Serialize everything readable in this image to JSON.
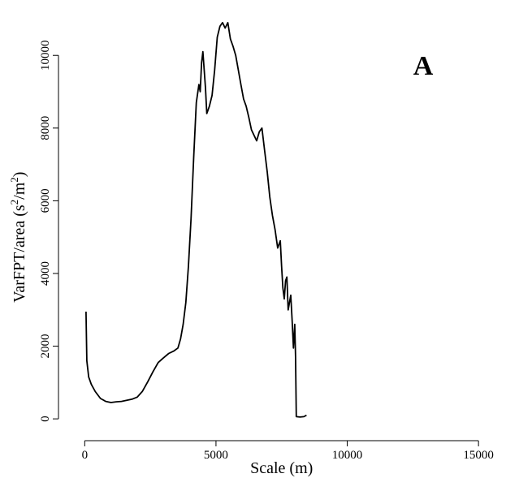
{
  "chart_data": {
    "type": "line",
    "title": "",
    "panel_label": "A",
    "xlabel": "Scale (m)",
    "ylabel": "VarFPT/area (s²/m²)",
    "ylabel_parts": {
      "pre": "VarFPT/area (s",
      "sup1": "2",
      "mid": "/m",
      "sup2": "2",
      "post": ")"
    },
    "xlim": [
      -1000,
      15800
    ],
    "ylim": [
      -600,
      11300
    ],
    "xticks": [
      0,
      5000,
      10000,
      15000
    ],
    "yticks": [
      0,
      2000,
      4000,
      6000,
      8000,
      10000
    ],
    "xtick_labels": [
      "0",
      "5000",
      "10000",
      "15000"
    ],
    "ytick_labels": [
      "0",
      "2000",
      "4000",
      "6000",
      "8000",
      "10000"
    ],
    "grid": false,
    "series": [
      {
        "color": "#000000",
        "points": [
          [
            50,
            2950
          ],
          [
            80,
            1600
          ],
          [
            150,
            1150
          ],
          [
            250,
            950
          ],
          [
            400,
            750
          ],
          [
            600,
            560
          ],
          [
            800,
            480
          ],
          [
            1000,
            450
          ],
          [
            1200,
            470
          ],
          [
            1400,
            480
          ],
          [
            1600,
            510
          ],
          [
            1800,
            540
          ],
          [
            2000,
            600
          ],
          [
            2200,
            760
          ],
          [
            2400,
            1020
          ],
          [
            2600,
            1300
          ],
          [
            2800,
            1550
          ],
          [
            3000,
            1680
          ],
          [
            3200,
            1800
          ],
          [
            3400,
            1870
          ],
          [
            3550,
            1950
          ],
          [
            3650,
            2200
          ],
          [
            3750,
            2600
          ],
          [
            3850,
            3200
          ],
          [
            3950,
            4200
          ],
          [
            4050,
            5500
          ],
          [
            4150,
            7200
          ],
          [
            4250,
            8700
          ],
          [
            4350,
            9200
          ],
          [
            4400,
            9000
          ],
          [
            4450,
            9800
          ],
          [
            4500,
            10100
          ],
          [
            4550,
            9600
          ],
          [
            4600,
            9100
          ],
          [
            4650,
            8400
          ],
          [
            4700,
            8500
          ],
          [
            4750,
            8600
          ],
          [
            4850,
            8900
          ],
          [
            4950,
            9600
          ],
          [
            5050,
            10500
          ],
          [
            5150,
            10800
          ],
          [
            5250,
            10900
          ],
          [
            5350,
            10750
          ],
          [
            5450,
            10900
          ],
          [
            5550,
            10450
          ],
          [
            5650,
            10250
          ],
          [
            5750,
            10000
          ],
          [
            5850,
            9600
          ],
          [
            5950,
            9200
          ],
          [
            6050,
            8800
          ],
          [
            6150,
            8600
          ],
          [
            6250,
            8300
          ],
          [
            6350,
            7950
          ],
          [
            6450,
            7800
          ],
          [
            6550,
            7650
          ],
          [
            6650,
            7900
          ],
          [
            6750,
            8000
          ],
          [
            6850,
            7400
          ],
          [
            6950,
            6800
          ],
          [
            7050,
            6100
          ],
          [
            7150,
            5600
          ],
          [
            7250,
            5200
          ],
          [
            7350,
            4700
          ],
          [
            7450,
            4900
          ],
          [
            7500,
            4200
          ],
          [
            7550,
            3600
          ],
          [
            7600,
            3300
          ],
          [
            7650,
            3800
          ],
          [
            7700,
            3900
          ],
          [
            7750,
            3000
          ],
          [
            7800,
            3200
          ],
          [
            7850,
            3400
          ],
          [
            7900,
            2700
          ],
          [
            7950,
            1950
          ],
          [
            8000,
            2600
          ],
          [
            8030,
            1700
          ],
          [
            8060,
            60
          ],
          [
            8200,
            50
          ],
          [
            8350,
            60
          ],
          [
            8450,
            100
          ]
        ]
      }
    ]
  }
}
